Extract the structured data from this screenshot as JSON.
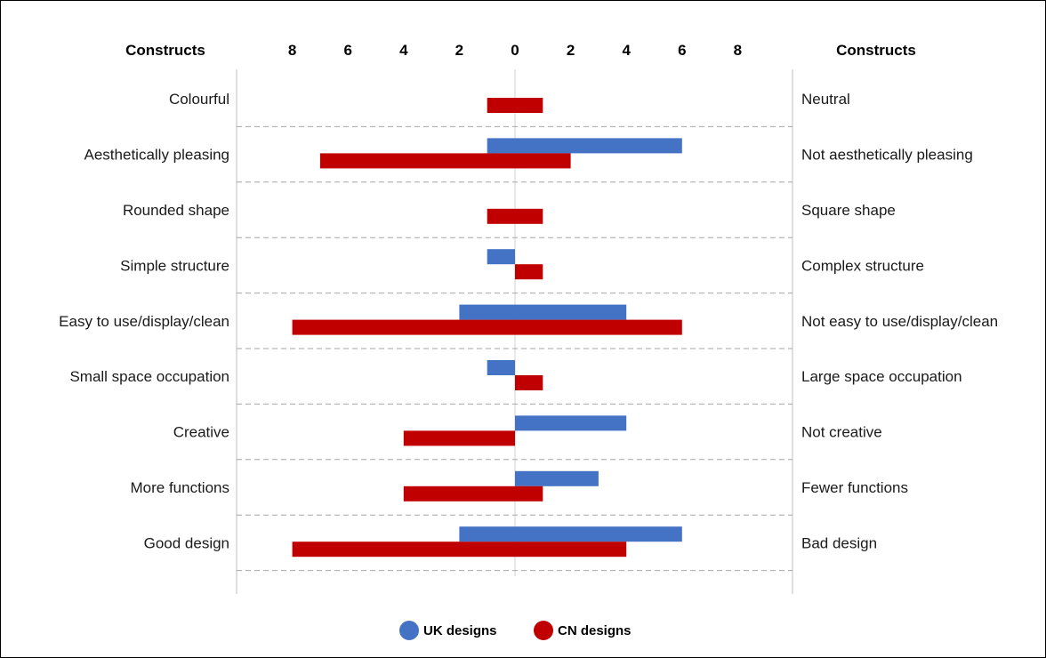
{
  "chart_data": {
    "type": "bar",
    "orientation": "horizontal",
    "left_header": "Constructs",
    "right_header": "Constructs",
    "x_tick_labels": [
      "8",
      "6",
      "4",
      "2",
      "0",
      "2",
      "4",
      "6",
      "8"
    ],
    "x_tick_values": [
      -8,
      -6,
      -4,
      -2,
      0,
      2,
      4,
      6,
      8
    ],
    "xlim": [
      -10,
      10
    ],
    "grid": "dashed horizontal separators between constructs",
    "legend_position": "bottom-center",
    "constructs": [
      {
        "left": "Colourful",
        "right": "Neutral"
      },
      {
        "left": "Aesthetically pleasing",
        "right": "Not aesthetically pleasing"
      },
      {
        "left": "Rounded shape",
        "right": "Square shape"
      },
      {
        "left": "Simple structure",
        "right": "Complex structure"
      },
      {
        "left": "Easy to use/display/clean",
        "right": "Not easy to use/display/clean"
      },
      {
        "left": "Small space occupation",
        "right": "Large space occupation"
      },
      {
        "left": "Creative",
        "right": "Not creative"
      },
      {
        "left": "More functions",
        "right": "Fewer functions"
      },
      {
        "left": "Good design",
        "right": "Bad design"
      }
    ],
    "series": [
      {
        "name": "UK designs",
        "color": "#4472c4",
        "ranges": [
          [
            0,
            0
          ],
          [
            -1,
            6
          ],
          [
            0,
            0
          ],
          [
            -1,
            0
          ],
          [
            -2,
            4
          ],
          [
            -1,
            0
          ],
          [
            0,
            4
          ],
          [
            0,
            3
          ],
          [
            -2,
            6
          ]
        ]
      },
      {
        "name": "CN designs",
        "color": "#c00000",
        "ranges": [
          [
            -1,
            1
          ],
          [
            -7,
            2
          ],
          [
            -1,
            1
          ],
          [
            0,
            1
          ],
          [
            -8,
            6
          ],
          [
            0,
            1
          ],
          [
            -4,
            0
          ],
          [
            -4,
            1
          ],
          [
            -8,
            4
          ]
        ]
      }
    ]
  }
}
